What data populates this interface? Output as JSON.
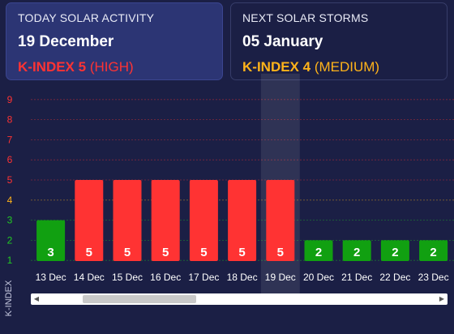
{
  "today": {
    "title": "TODAY SOLAR ACTIVITY",
    "date": "19 December",
    "k_label": "K-INDEX 5",
    "level": "(HIGH)",
    "color": "#ff3333"
  },
  "next": {
    "title": "NEXT SOLAR STORMS",
    "date": "05 January",
    "k_label": "K-INDEX 4",
    "level": "(MEDIUM)",
    "color": "#ffb31a"
  },
  "chart_data": {
    "type": "bar",
    "ylabel": "K-INDEX",
    "ylim": [
      0,
      9
    ],
    "yticks": [
      "1",
      "2",
      "3",
      "4",
      "5",
      "6",
      "7",
      "8",
      "9"
    ],
    "ytick_colors": [
      "#22cc22",
      "#22cc22",
      "#22cc22",
      "#ffb31a",
      "#ff3333",
      "#ff3333",
      "#ff3333",
      "#ff3333",
      "#ff3333"
    ],
    "categories": [
      "13 Dec",
      "14 Dec",
      "15 Dec",
      "16 Dec",
      "17 Dec",
      "18 Dec",
      "19 Dec",
      "20 Dec",
      "21 Dec",
      "22 Dec",
      "23 Dec"
    ],
    "values": [
      3,
      5,
      5,
      5,
      5,
      5,
      5,
      2,
      2,
      2,
      2
    ],
    "bar_colors": [
      "#11a011",
      "#ff3333",
      "#ff3333",
      "#ff3333",
      "#ff3333",
      "#ff3333",
      "#ff3333",
      "#11a011",
      "#11a011",
      "#11a011",
      "#11a011"
    ],
    "highlighted_category": "19 Dec",
    "grid": true
  }
}
